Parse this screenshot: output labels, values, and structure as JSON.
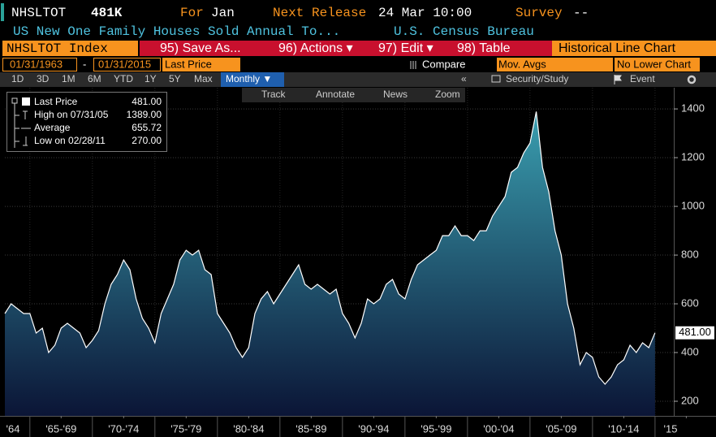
{
  "header": {
    "ticker": "NHSLTOT",
    "price": "481K",
    "for_label": "For",
    "for_value": "Jan",
    "release_label": "Next Release",
    "release_value": "24 Mar 10:00",
    "survey_label": "Survey",
    "survey_value": "--",
    "description": "US New One Family Houses Sold Annual To...",
    "source": "U.S. Census Bureau"
  },
  "toolbar": {
    "security": "NHSLTOT Index",
    "menu": [
      "95) Save As...",
      "96) Actions ▾",
      "97) Edit ▾",
      "98) Table"
    ],
    "view": "Historical Line Chart"
  },
  "range": {
    "start": "01/31/1963",
    "separator": "-",
    "end": "01/31/2015",
    "field": "Last Price",
    "compare": "Compare",
    "mov_avgs": "Mov. Avgs",
    "lower_chart": "No Lower Chart"
  },
  "periods": [
    "1D",
    "3D",
    "1M",
    "6M",
    "YTD",
    "1Y",
    "5Y",
    "Max"
  ],
  "frequency": "Monthly ▼",
  "collapse": "«",
  "study": "Security/Study",
  "event": "Event",
  "chart_tools": [
    "Track",
    "Annotate",
    "News",
    "Zoom"
  ],
  "legend": [
    {
      "label": "Last Price",
      "value": "481.00"
    },
    {
      "label": "High on 07/31/05",
      "value": "1389.00"
    },
    {
      "label": "Average",
      "value": "655.72"
    },
    {
      "label": "Low on 02/28/11",
      "value": "270.00"
    }
  ],
  "chart_data": {
    "type": "area",
    "color": "#ffffff",
    "fill_top": "#3a9fb0",
    "fill_bottom": "#0b1536",
    "grid": true,
    "x": [
      1963,
      1963.5,
      1964,
      1964.5,
      1965,
      1965.5,
      1966,
      1966.5,
      1967,
      1967.5,
      1968,
      1968.5,
      1969,
      1969.5,
      1970,
      1970.5,
      1971,
      1971.5,
      1972,
      1972.5,
      1973,
      1973.5,
      1974,
      1974.5,
      1975,
      1975.5,
      1976,
      1976.5,
      1977,
      1977.5,
      1978,
      1978.5,
      1979,
      1979.5,
      1980,
      1980.5,
      1981,
      1981.5,
      1982,
      1982.5,
      1983,
      1983.5,
      1984,
      1984.5,
      1985,
      1985.5,
      1986,
      1986.5,
      1987,
      1987.5,
      1988,
      1988.5,
      1989,
      1989.5,
      1990,
      1990.5,
      1991,
      1991.5,
      1992,
      1992.5,
      1993,
      1993.5,
      1994,
      1994.5,
      1995,
      1995.5,
      1996,
      1996.5,
      1997,
      1997.5,
      1998,
      1998.5,
      1999,
      1999.5,
      2000,
      2000.5,
      2001,
      2001.5,
      2002,
      2002.5,
      2003,
      2003.5,
      2004,
      2004.5,
      2005,
      2005.5,
      2006,
      2006.5,
      2007,
      2007.5,
      2008,
      2008.5,
      2009,
      2009.5,
      2010,
      2010.5,
      2011,
      2011.5,
      2012,
      2012.5,
      2013,
      2013.5,
      2014,
      2014.5,
      2015
    ],
    "values": [
      560,
      600,
      580,
      560,
      560,
      480,
      500,
      400,
      430,
      500,
      520,
      500,
      480,
      420,
      450,
      490,
      600,
      680,
      720,
      780,
      740,
      620,
      540,
      500,
      440,
      560,
      620,
      680,
      780,
      820,
      800,
      820,
      740,
      720,
      560,
      520,
      480,
      420,
      380,
      420,
      560,
      620,
      650,
      600,
      640,
      680,
      720,
      760,
      680,
      660,
      680,
      660,
      640,
      660,
      560,
      520,
      460,
      520,
      620,
      600,
      620,
      680,
      700,
      640,
      620,
      700,
      760,
      780,
      800,
      820,
      880,
      880,
      920,
      880,
      880,
      860,
      900,
      900,
      960,
      1000,
      1040,
      1140,
      1160,
      1220,
      1260,
      1389,
      1160,
      1060,
      900,
      800,
      600,
      500,
      350,
      400,
      380,
      300,
      270,
      300,
      350,
      370,
      430,
      400,
      440,
      420,
      481
    ],
    "xlim": [
      1963,
      2016.5
    ],
    "ylim": [
      140,
      1487
    ],
    "yticks": [
      200,
      400,
      600,
      800,
      1000,
      1200,
      1400
    ],
    "xticks": [
      {
        "value": 1962.5,
        "label": "'64"
      },
      {
        "value": 1967.5,
        "label": "'65-'69"
      },
      {
        "value": 1972.5,
        "label": "'70-'74"
      },
      {
        "value": 1977.5,
        "label": "'75-'79"
      },
      {
        "value": 1982.5,
        "label": "'80-'84"
      },
      {
        "value": 1987.5,
        "label": "'85-'89"
      },
      {
        "value": 1992.5,
        "label": "'90-'94"
      },
      {
        "value": 1997.5,
        "label": "'95-'99"
      },
      {
        "value": 2002.5,
        "label": "'00-'04"
      },
      {
        "value": 2007.5,
        "label": "'05-'09"
      },
      {
        "value": 2012.5,
        "label": "'10-'14"
      },
      {
        "value": 2017.5,
        "label": "'15"
      }
    ]
  }
}
